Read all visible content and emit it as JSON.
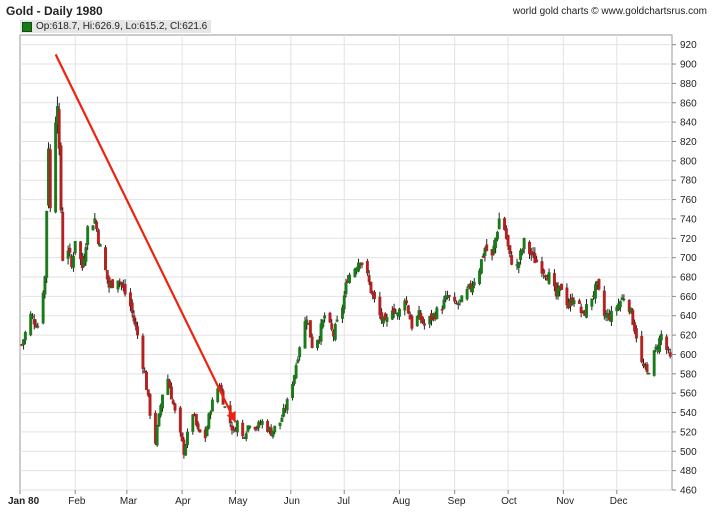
{
  "header": {
    "title": "Gold - Daily 1980",
    "credit": "world gold charts © www.goldchartsrus.com",
    "ohlc_readout": "Op:618.7, Hi:626.9, Lo:615.2, Cl:621.6"
  },
  "colors": {
    "up": "#1a7a1a",
    "down": "#b32020",
    "arrow": "#ee2211",
    "grid": "#e2e2e2"
  },
  "chart_data": {
    "type": "candlestick",
    "title": "Gold - Daily 1980",
    "ylim": [
      460,
      930
    ],
    "yticks": [
      460,
      480,
      500,
      520,
      540,
      560,
      580,
      600,
      620,
      640,
      660,
      680,
      700,
      720,
      740,
      760,
      780,
      800,
      820,
      840,
      860,
      880,
      900,
      920
    ],
    "xticks": [
      "Jan 80",
      "Feb",
      "Mar",
      "Apr",
      "May",
      "Jun",
      "Jul",
      "Aug",
      "Sep",
      "Oct",
      "Nov",
      "Dec"
    ],
    "grid": true,
    "close_anchors": [
      [
        "1980-01-02",
        610
      ],
      [
        "1980-01-07",
        640
      ],
      [
        "1980-01-11",
        630
      ],
      [
        "1980-01-15",
        680
      ],
      [
        "1980-01-17",
        820
      ],
      [
        "1980-01-18",
        750
      ],
      [
        "1980-01-21",
        850
      ],
      [
        "1980-01-22",
        870
      ],
      [
        "1980-01-23",
        800
      ],
      [
        "1980-01-25",
        700
      ],
      [
        "1980-01-28",
        710
      ],
      [
        "1980-01-30",
        690
      ],
      [
        "1980-02-01",
        720
      ],
      [
        "1980-02-05",
        690
      ],
      [
        "1980-02-08",
        730
      ],
      [
        "1980-02-12",
        740
      ],
      [
        "1980-02-15",
        710
      ],
      [
        "1980-02-20",
        670
      ],
      [
        "1980-02-25",
        680
      ],
      [
        "1980-03-03",
        650
      ],
      [
        "1980-03-07",
        620
      ],
      [
        "1980-03-11",
        580
      ],
      [
        "1980-03-14",
        540
      ],
      [
        "1980-03-17",
        510
      ],
      [
        "1980-03-21",
        560
      ],
      [
        "1980-03-24",
        575
      ],
      [
        "1980-03-28",
        540
      ],
      [
        "1980-04-02",
        500
      ],
      [
        "1980-04-07",
        540
      ],
      [
        "1980-04-10",
        520
      ],
      [
        "1980-04-14",
        515
      ],
      [
        "1980-04-17",
        545
      ],
      [
        "1980-04-22",
        570
      ],
      [
        "1980-04-25",
        545
      ],
      [
        "1980-04-30",
        520
      ],
      [
        "1980-05-02",
        530
      ],
      [
        "1980-05-05",
        515
      ],
      [
        "1980-05-09",
        530
      ],
      [
        "1980-05-13",
        525
      ],
      [
        "1980-05-16",
        530
      ],
      [
        "1980-05-21",
        520
      ],
      [
        "1980-05-26",
        530
      ],
      [
        "1980-05-30",
        550
      ],
      [
        "1980-06-03",
        580
      ],
      [
        "1980-06-06",
        610
      ],
      [
        "1980-06-10",
        640
      ],
      [
        "1980-06-13",
        610
      ],
      [
        "1980-06-17",
        620
      ],
      [
        "1980-06-20",
        640
      ],
      [
        "1980-06-25",
        620
      ],
      [
        "1980-06-30",
        650
      ],
      [
        "1980-07-03",
        680
      ],
      [
        "1980-07-07",
        690
      ],
      [
        "1980-07-10",
        700
      ],
      [
        "1980-07-14",
        680
      ],
      [
        "1980-07-17",
        660
      ],
      [
        "1980-07-21",
        640
      ],
      [
        "1980-07-24",
        630
      ],
      [
        "1980-07-28",
        650
      ],
      [
        "1980-07-31",
        640
      ],
      [
        "1980-08-04",
        660
      ],
      [
        "1980-08-08",
        630
      ],
      [
        "1980-08-12",
        640
      ],
      [
        "1980-08-15",
        630
      ],
      [
        "1980-08-20",
        640
      ],
      [
        "1980-08-25",
        650
      ],
      [
        "1980-08-28",
        660
      ],
      [
        "1980-09-01",
        650
      ],
      [
        "1980-09-05",
        655
      ],
      [
        "1980-09-10",
        670
      ],
      [
        "1980-09-15",
        690
      ],
      [
        "1980-09-18",
        710
      ],
      [
        "1980-09-22",
        700
      ],
      [
        "1980-09-26",
        740
      ],
      [
        "1980-09-29",
        730
      ],
      [
        "1980-10-02",
        700
      ],
      [
        "1980-10-06",
        690
      ],
      [
        "1980-10-10",
        715
      ],
      [
        "1980-10-15",
        700
      ],
      [
        "1980-10-20",
        690
      ],
      [
        "1980-10-24",
        680
      ],
      [
        "1980-10-28",
        660
      ],
      [
        "1980-10-31",
        670
      ],
      [
        "1980-11-04",
        650
      ],
      [
        "1980-11-07",
        660
      ],
      [
        "1980-11-12",
        640
      ],
      [
        "1980-11-17",
        660
      ],
      [
        "1980-11-20",
        670
      ],
      [
        "1980-11-24",
        640
      ],
      [
        "1980-11-28",
        640
      ],
      [
        "1980-12-01",
        650
      ],
      [
        "1980-12-05",
        660
      ],
      [
        "1980-12-08",
        650
      ],
      [
        "1980-12-12",
        620
      ],
      [
        "1980-12-15",
        590
      ],
      [
        "1980-12-18",
        580
      ],
      [
        "1980-12-22",
        600
      ],
      [
        "1980-12-26",
        620
      ],
      [
        "1980-12-31",
        595
      ]
    ],
    "annotations": [
      {
        "type": "arrow",
        "from": [
          "1980-01-21",
          910
        ],
        "to": [
          "1980-05-01",
          530
        ]
      }
    ]
  }
}
